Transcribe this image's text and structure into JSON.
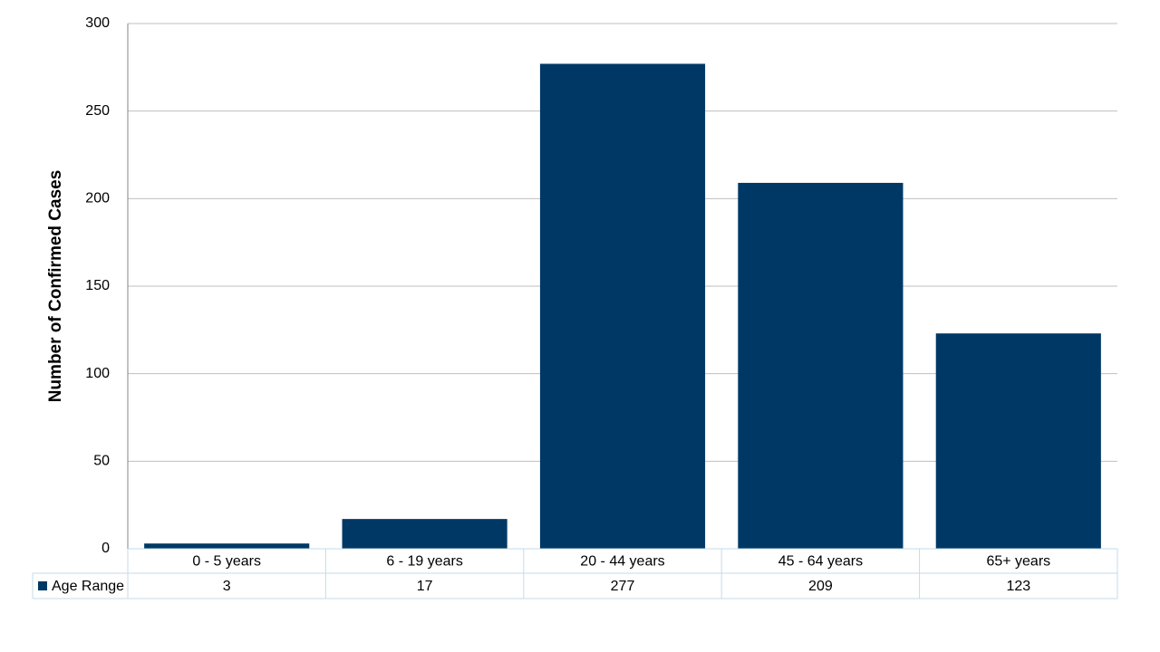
{
  "chart_data": {
    "type": "bar",
    "y_label": "Number of Confirmed Cases",
    "categories": [
      "0 - 5 years",
      "6 - 19 years",
      "20 - 44 years",
      "45 - 64 years",
      "65+ years"
    ],
    "series": [
      {
        "name": "Age Range",
        "color": "#003865",
        "values": [
          3,
          17,
          277,
          209,
          123
        ]
      }
    ],
    "ylim": [
      0,
      300
    ],
    "yticks": [
      0,
      50,
      100,
      150,
      200,
      250,
      300
    ],
    "grid": true,
    "data_table": true
  }
}
